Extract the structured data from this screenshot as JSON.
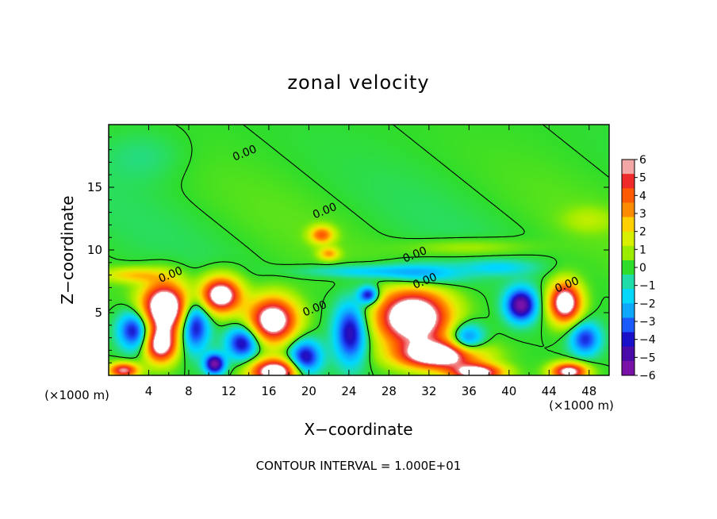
{
  "chart_data": {
    "type": "heatmap",
    "title": "zonal velocity",
    "xlabel": "X−coordinate",
    "ylabel": "Z−coordinate",
    "x_unit_left": "(×1000 m)",
    "x_unit_right": "(×1000 m)",
    "xlim": [
      0,
      50
    ],
    "ylim": [
      0,
      20
    ],
    "x_ticks": [
      {
        "value": 4,
        "label": "4"
      },
      {
        "value": 8,
        "label": "8"
      },
      {
        "value": 12,
        "label": "12"
      },
      {
        "value": 16,
        "label": "16"
      },
      {
        "value": 20,
        "label": "20"
      },
      {
        "value": 24,
        "label": "24"
      },
      {
        "value": 28,
        "label": "28"
      },
      {
        "value": 32,
        "label": "32"
      },
      {
        "value": 36,
        "label": "36"
      },
      {
        "value": 40,
        "label": "40"
      },
      {
        "value": 44,
        "label": "44"
      },
      {
        "value": 48,
        "label": "48"
      }
    ],
    "y_ticks": [
      {
        "value": 5,
        "label": "5"
      },
      {
        "value": 10,
        "label": "10"
      },
      {
        "value": 15,
        "label": "15"
      }
    ],
    "colorbar": {
      "min": -6,
      "max": 6,
      "labels": [
        "6",
        "5",
        "4",
        "3",
        "2",
        "1",
        "0",
        "−1",
        "−2",
        "−3",
        "−4",
        "−5",
        "−6"
      ],
      "colors": [
        "#f2a6a6",
        "#ee2a2a",
        "#ff5a00",
        "#ff8c00",
        "#ffd000",
        "#d8ef00",
        "#9cec00",
        "#30dd2a",
        "#20dca8",
        "#00d8ff",
        "#0ea8ff",
        "#1a5aff",
        "#1a10c8",
        "#4a0ba8",
        "#7a12a8"
      ]
    },
    "contour_labels": [
      {
        "x": 13.6,
        "y": 17.7,
        "text": "0.00"
      },
      {
        "x": 21.6,
        "y": 13.1,
        "text": "0.00"
      },
      {
        "x": 30.6,
        "y": 9.6,
        "text": "0.00"
      },
      {
        "x": 6.2,
        "y": 8.0,
        "text": "0.00"
      },
      {
        "x": 31.6,
        "y": 7.5,
        "text": "0.00"
      },
      {
        "x": 20.6,
        "y": 5.3,
        "text": "0.00"
      },
      {
        "x": 45.8,
        "y": 7.2,
        "text": "0.00"
      }
    ],
    "features": [
      {
        "x": 5.6,
        "y": 5.4,
        "sx": 2.3,
        "sy": 2.0,
        "v": 9
      },
      {
        "x": 5.2,
        "y": 2.4,
        "sx": 1.6,
        "sy": 1.4,
        "v": 7
      },
      {
        "x": 11.2,
        "y": 6.4,
        "sx": 2.0,
        "sy": 1.4,
        "v": 8
      },
      {
        "x": 16.4,
        "y": 4.4,
        "sx": 2.4,
        "sy": 1.8,
        "v": 8
      },
      {
        "x": 16.6,
        "y": 0.3,
        "sx": 2.4,
        "sy": 1.0,
        "v": 8
      },
      {
        "x": 30.4,
        "y": 4.6,
        "sx": 3.6,
        "sy": 2.2,
        "v": 9
      },
      {
        "x": 33.0,
        "y": 1.6,
        "sx": 4.0,
        "sy": 1.1,
        "v": 8
      },
      {
        "x": 36.8,
        "y": 0.2,
        "sx": 2.6,
        "sy": 0.7,
        "v": 7
      },
      {
        "x": 45.6,
        "y": 5.8,
        "sx": 1.6,
        "sy": 1.6,
        "v": 8
      },
      {
        "x": 46.0,
        "y": 0.3,
        "sx": 1.8,
        "sy": 0.7,
        "v": 7
      },
      {
        "x": 1.5,
        "y": 0.4,
        "sx": 1.5,
        "sy": 0.6,
        "v": 6
      },
      {
        "x": 21.3,
        "y": 11.2,
        "sx": 1.2,
        "sy": 0.7,
        "v": 4
      },
      {
        "x": 22.0,
        "y": 9.7,
        "sx": 1.0,
        "sy": 0.5,
        "v": 3
      },
      {
        "x": 2.5,
        "y": 8.0,
        "sx": 3.0,
        "sy": 0.6,
        "v": 2.5
      },
      {
        "x": 36.0,
        "y": 10.2,
        "sx": 6.0,
        "sy": 0.7,
        "v": 1.2
      },
      {
        "x": 48.0,
        "y": 12.4,
        "sx": 2.5,
        "sy": 1.0,
        "v": 1.0
      },
      {
        "x": 2.6,
        "y": 3.6,
        "sx": 1.6,
        "sy": 1.5,
        "v": -5
      },
      {
        "x": 8.6,
        "y": 4.0,
        "sx": 1.4,
        "sy": 2.0,
        "v": -5
      },
      {
        "x": 10.6,
        "y": 0.9,
        "sx": 1.0,
        "sy": 0.8,
        "v": -6
      },
      {
        "x": 13.4,
        "y": 2.6,
        "sx": 1.6,
        "sy": 1.3,
        "v": -5
      },
      {
        "x": 19.6,
        "y": 1.4,
        "sx": 1.6,
        "sy": 1.4,
        "v": -5
      },
      {
        "x": 24.2,
        "y": 3.4,
        "sx": 1.6,
        "sy": 2.4,
        "v": -5
      },
      {
        "x": 26.0,
        "y": 6.4,
        "sx": 1.0,
        "sy": 0.7,
        "v": -5
      },
      {
        "x": 31.2,
        "y": 8.0,
        "sx": 4.0,
        "sy": 0.9,
        "v": -2.5
      },
      {
        "x": 35.8,
        "y": 2.9,
        "sx": 1.6,
        "sy": 1.2,
        "v": -4
      },
      {
        "x": 41.2,
        "y": 5.6,
        "sx": 1.5,
        "sy": 1.3,
        "v": -6
      },
      {
        "x": 47.6,
        "y": 2.9,
        "sx": 1.5,
        "sy": 1.3,
        "v": -4
      },
      {
        "x": 25.5,
        "y": 8.3,
        "sx": 6.0,
        "sy": 0.5,
        "v": -1.8
      },
      {
        "x": 39.0,
        "y": 8.6,
        "sx": 3.5,
        "sy": 0.6,
        "v": -1.5
      },
      {
        "x": 3.6,
        "y": 17.5,
        "sx": 4.0,
        "sy": 2.0,
        "v": -0.6
      }
    ],
    "footer": "CONTOUR INTERVAL = 1.000E+01"
  }
}
